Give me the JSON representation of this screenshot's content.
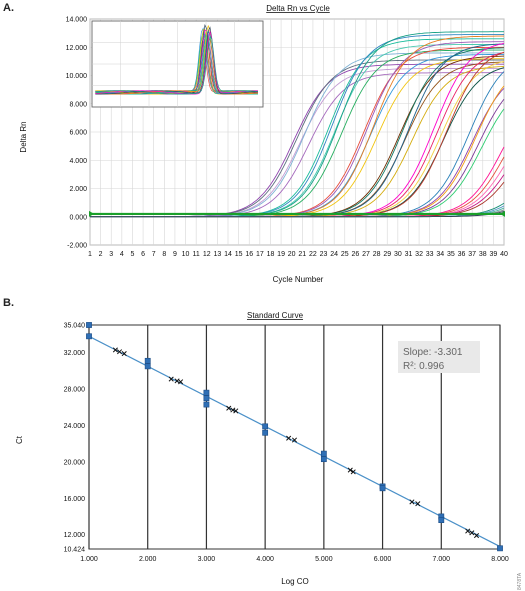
{
  "figure": {
    "panel_a_letter": "A.",
    "panel_b_letter": "B.",
    "code": "8478TA"
  },
  "chart_data": [
    {
      "type": "line",
      "title": "Delta Rn vs Cycle",
      "xlabel": "Cycle Number",
      "ylabel": "Delta Rn",
      "xlim": [
        1,
        40
      ],
      "ylim": [
        -2000,
        14000
      ],
      "x_ticks": [
        1,
        2,
        3,
        4,
        5,
        6,
        7,
        8,
        9,
        10,
        11,
        12,
        13,
        14,
        15,
        16,
        17,
        18,
        19,
        20,
        21,
        22,
        23,
        24,
        25,
        26,
        27,
        28,
        29,
        30,
        31,
        32,
        33,
        34,
        35,
        36,
        37,
        38,
        39,
        40
      ],
      "y_ticks": [
        "-2.000",
        "0.000",
        "2.000",
        "4.000",
        "6.000",
        "8.000",
        "10.000",
        "12.000",
        "14.000"
      ],
      "threshold": 200,
      "grid": true,
      "series": [
        {
          "ct": 17.0,
          "plateau": 10800,
          "color": "#8e44ad"
        },
        {
          "ct": 17.3,
          "plateau": 11100,
          "color": "#5d6d7e"
        },
        {
          "ct": 17.6,
          "plateau": 10500,
          "color": "#c39bd3"
        },
        {
          "ct": 18.0,
          "plateau": 11600,
          "color": "#7fb3d5"
        },
        {
          "ct": 18.4,
          "plateau": 10200,
          "color": "#a569bd"
        },
        {
          "ct": 20.3,
          "plateau": 12600,
          "color": "#1abc9c"
        },
        {
          "ct": 20.6,
          "plateau": 12900,
          "color": "#2e86c1"
        },
        {
          "ct": 20.9,
          "plateau": 12200,
          "color": "#48c9b0"
        },
        {
          "ct": 21.2,
          "plateau": 13100,
          "color": "#16a085"
        },
        {
          "ct": 21.5,
          "plateau": 11800,
          "color": "#27ae60"
        },
        {
          "ct": 23.6,
          "plateau": 12000,
          "color": "#e74c3c"
        },
        {
          "ct": 23.9,
          "plateau": 12400,
          "color": "#9b59b6"
        },
        {
          "ct": 24.2,
          "plateau": 11500,
          "color": "#3498db"
        },
        {
          "ct": 24.5,
          "plateau": 12800,
          "color": "#e67e22"
        },
        {
          "ct": 24.8,
          "plateau": 11200,
          "color": "#f1c40f"
        },
        {
          "ct": 26.9,
          "plateau": 11400,
          "color": "#6e2c00"
        },
        {
          "ct": 27.2,
          "plateau": 12000,
          "color": "#117864"
        },
        {
          "ct": 27.5,
          "plateau": 11000,
          "color": "#935116"
        },
        {
          "ct": 27.8,
          "plateau": 12300,
          "color": "#1f618d"
        },
        {
          "ct": 28.1,
          "plateau": 10700,
          "color": "#d4ac0d"
        },
        {
          "ct": 30.2,
          "plateau": 12500,
          "color": "#ff00cc"
        },
        {
          "ct": 30.5,
          "plateau": 11900,
          "color": "#e91e63"
        },
        {
          "ct": 30.8,
          "plateau": 11300,
          "color": "#f4d03f"
        },
        {
          "ct": 31.1,
          "plateau": 10900,
          "color": "#0b5345"
        },
        {
          "ct": 31.4,
          "plateau": 12100,
          "color": "#c0392b"
        },
        {
          "ct": 33.5,
          "plateau": 11700,
          "color": "#2980b9"
        },
        {
          "ct": 33.8,
          "plateau": 10600,
          "color": "#8e44ad"
        },
        {
          "ct": 34.1,
          "plateau": 11100,
          "color": "#f39c12"
        },
        {
          "ct": 34.4,
          "plateau": 10300,
          "color": "#7d3c98"
        },
        {
          "ct": 34.7,
          "plateau": 9800,
          "color": "#2ecc71"
        },
        {
          "ct": 36.7,
          "plateau": 9600,
          "color": "#ff1493"
        },
        {
          "ct": 37.0,
          "plateau": 9000,
          "color": "#e74c3c"
        },
        {
          "ct": 37.3,
          "plateau": 8400,
          "color": "#ff69b4"
        },
        {
          "ct": 37.6,
          "plateau": 7800,
          "color": "#c71585"
        },
        {
          "ct": 37.9,
          "plateau": 7200,
          "color": "#a93226"
        },
        {
          "ct": 39.7,
          "plateau": 6400,
          "color": "#138d75"
        },
        {
          "ct": 40.0,
          "plateau": 6000,
          "color": "#5499c7"
        },
        {
          "ct": 40.3,
          "plateau": 5600,
          "color": "#45b39d"
        },
        {
          "ct": 40.6,
          "plateau": 5200,
          "color": "#7f8c8d"
        },
        {
          "ct": 40.9,
          "plateau": 4800,
          "color": "#2e4053"
        }
      ],
      "inset": {
        "type": "line",
        "description_of_curves": "melt peaks",
        "peak_center": 0.67,
        "y_base": 0.17,
        "y_peak": 0.97,
        "curve_count": 20
      }
    },
    {
      "type": "scatter",
      "title": "Standard Curve",
      "xlabel": "Log CO",
      "ylabel": "Ct",
      "xlim": [
        1.0,
        8.0
      ],
      "ylim": [
        10.424,
        35.04
      ],
      "x_ticks": [
        "1.000",
        "2.000",
        "3.000",
        "4.000",
        "5.000",
        "6.000",
        "7.000",
        "8.000"
      ],
      "y_ticks": [
        {
          "v": 10.424,
          "label": "10.424"
        },
        {
          "v": 12.0,
          "label": "12.000"
        },
        {
          "v": 16.0,
          "label": "16.000"
        },
        {
          "v": 20.0,
          "label": "20.000"
        },
        {
          "v": 24.0,
          "label": "24.000"
        },
        {
          "v": 28.0,
          "label": "28.000"
        },
        {
          "v": 32.0,
          "label": "32.000"
        },
        {
          "v": 35.04,
          "label": "35.040"
        }
      ],
      "slope": -3.301,
      "intercept": 37.1,
      "annotation": {
        "slope_text": "Slope: -3.301",
        "r2_text": "R²: 0.996"
      },
      "standards": [
        {
          "x": 1.0,
          "y": 35.04
        },
        {
          "x": 1.0,
          "y": 33.8
        },
        {
          "x": 2.0,
          "y": 31.1
        },
        {
          "x": 2.0,
          "y": 30.5
        },
        {
          "x": 3.0,
          "y": 27.6
        },
        {
          "x": 3.0,
          "y": 27.0
        },
        {
          "x": 3.0,
          "y": 26.3
        },
        {
          "x": 4.0,
          "y": 23.9
        },
        {
          "x": 4.0,
          "y": 23.2
        },
        {
          "x": 5.0,
          "y": 20.9
        },
        {
          "x": 5.0,
          "y": 20.3
        },
        {
          "x": 6.0,
          "y": 17.3
        },
        {
          "x": 6.0,
          "y": 17.1
        },
        {
          "x": 7.0,
          "y": 14.0
        },
        {
          "x": 7.0,
          "y": 13.6
        },
        {
          "x": 8.0,
          "y": 10.5
        }
      ],
      "unknowns": [
        {
          "x": 1.45,
          "y": 32.3
        },
        {
          "x": 1.52,
          "y": 32.1
        },
        {
          "x": 1.6,
          "y": 31.9
        },
        {
          "x": 2.4,
          "y": 29.1
        },
        {
          "x": 2.5,
          "y": 28.9
        },
        {
          "x": 2.56,
          "y": 28.8
        },
        {
          "x": 3.38,
          "y": 25.9
        },
        {
          "x": 3.45,
          "y": 25.7
        },
        {
          "x": 3.5,
          "y": 25.6
        },
        {
          "x": 4.4,
          "y": 22.6
        },
        {
          "x": 4.5,
          "y": 22.4
        },
        {
          "x": 5.45,
          "y": 19.1
        },
        {
          "x": 5.5,
          "y": 18.9
        },
        {
          "x": 6.5,
          "y": 15.6
        },
        {
          "x": 6.6,
          "y": 15.4
        },
        {
          "x": 7.45,
          "y": 12.4
        },
        {
          "x": 7.52,
          "y": 12.2
        },
        {
          "x": 7.6,
          "y": 11.9
        }
      ],
      "grid": true
    }
  ]
}
